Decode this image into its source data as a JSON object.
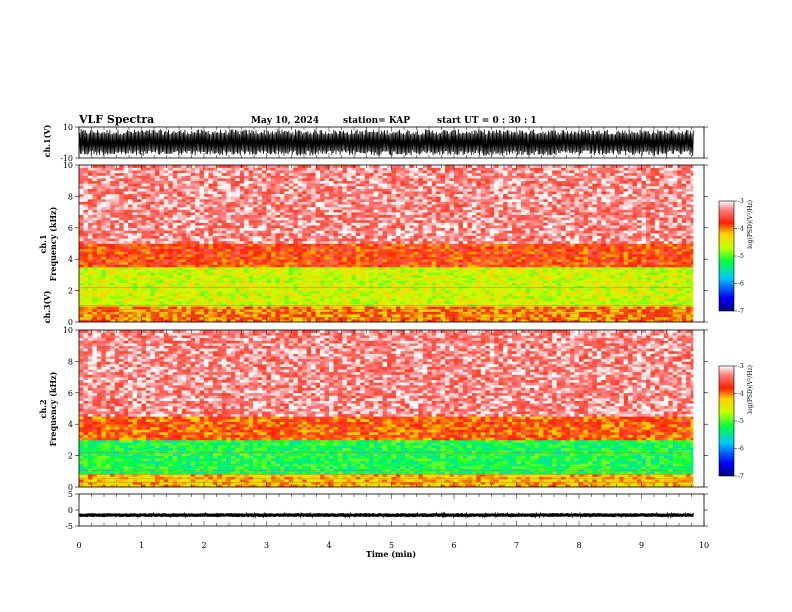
{
  "header": {
    "title": "VLF Spectra",
    "date": "May 10, 2024",
    "station": "station= KAP",
    "start": "start  UT =   0  : 30 : 1"
  },
  "chart_data": [
    {
      "type": "line",
      "panel": "ch1-waveform",
      "ylabel": "ch.1(V)",
      "ylim": [
        -10,
        10
      ],
      "ytick_labels": [
        "10",
        "-10"
      ],
      "x_range_min": [
        0,
        9.83
      ],
      "note_values": "dense oscillation nearly filling the full range",
      "amplitude_typical": 8.5
    },
    {
      "type": "heatmap",
      "panel": "ch1-spectrogram",
      "ylabel": "ch.1 Frequency (kHz)",
      "ylim": [
        0,
        10
      ],
      "ytick_labels": [
        "0",
        "2",
        "4",
        "6",
        "8",
        "10"
      ],
      "bands_khz": [
        {
          "from": 0.0,
          "to": 1.0,
          "level": -4.0
        },
        {
          "from": 1.0,
          "to": 3.5,
          "level": -4.6
        },
        {
          "from": 3.5,
          "to": 5.0,
          "level": -3.8
        },
        {
          "from": 5.0,
          "to": 10.0,
          "level": -3.3
        }
      ],
      "colorbar": {
        "label": "log(PSD)(V²/Hz)",
        "ticks": [
          "-3",
          "-4",
          "-5",
          "-6",
          "-7"
        ],
        "range": [
          -7,
          -3
        ]
      }
    },
    {
      "type": "heatmap",
      "panel": "ch2-spectrogram",
      "ylabel": "ch.2 Frequency (kHz)",
      "ylim": [
        0,
        10
      ],
      "ytick_labels": [
        "0",
        "2",
        "4",
        "6",
        "8",
        "10"
      ],
      "bands_khz": [
        {
          "from": 0.0,
          "to": 0.8,
          "level": -4.2
        },
        {
          "from": 0.8,
          "to": 3.0,
          "level": -5.2
        },
        {
          "from": 3.0,
          "to": 4.5,
          "level": -3.9
        },
        {
          "from": 4.5,
          "to": 10.0,
          "level": -3.3
        }
      ],
      "colorbar": {
        "label": "log(PSD)(V²/Hz)",
        "ticks": [
          "-3",
          "-4",
          "-5",
          "-6",
          "-7"
        ],
        "range": [
          -7,
          -3
        ]
      }
    },
    {
      "type": "line",
      "panel": "ch3-waveform",
      "ylabel": "ch.3(V)",
      "ylim": [
        -5,
        5
      ],
      "ytick_labels": [
        "5",
        "0",
        "-5"
      ],
      "x_range_min": [
        0,
        9.83
      ],
      "center_value": -1.6,
      "amplitude_typical": 0.6
    }
  ],
  "xaxis": {
    "label": "Time (min)",
    "range": [
      0,
      10
    ],
    "tick_labels": [
      "0",
      "1",
      "2",
      "3",
      "4",
      "5",
      "6",
      "7",
      "8",
      "9",
      "10"
    ]
  }
}
